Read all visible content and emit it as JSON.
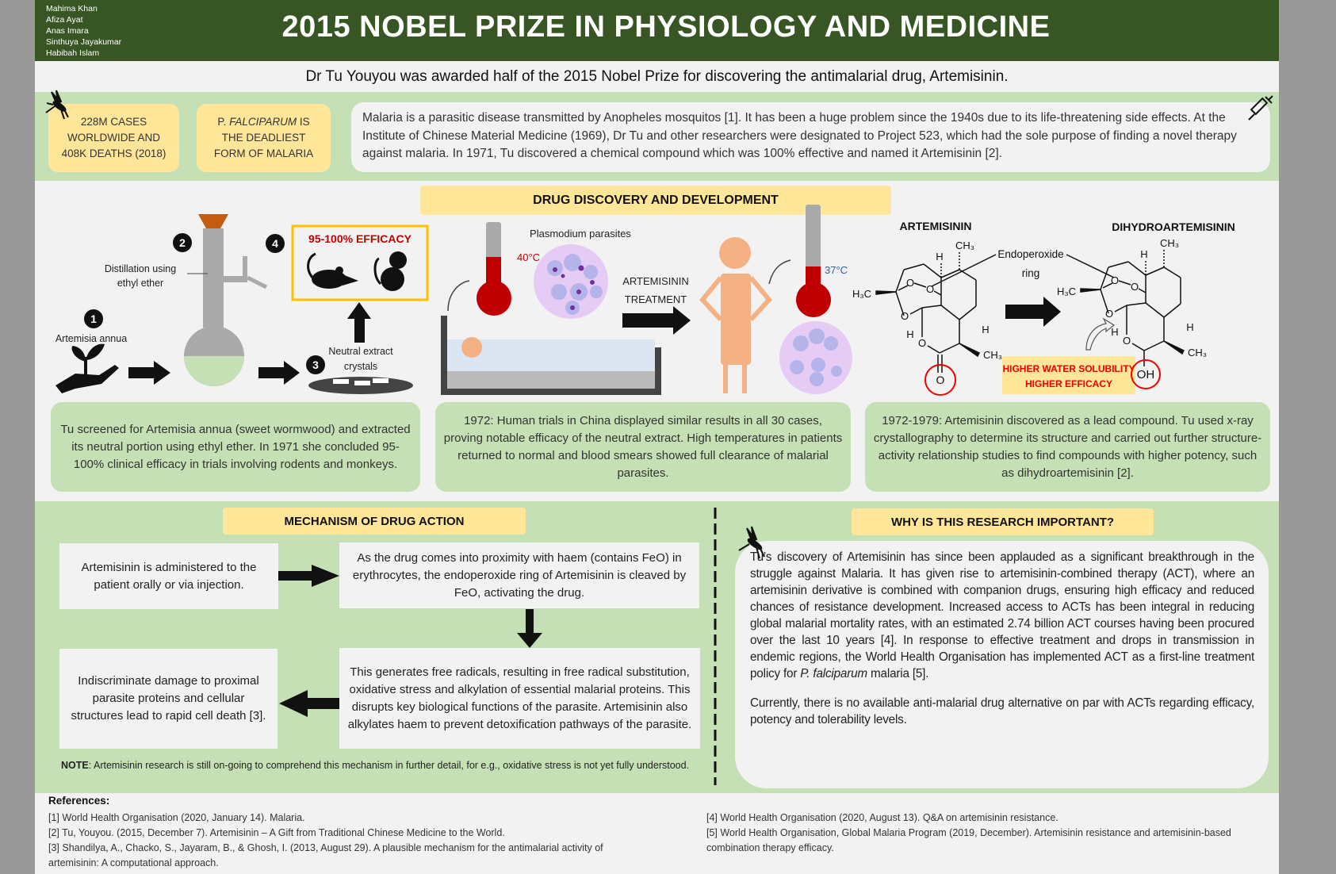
{
  "header": {
    "authors": [
      "Mahima Khan",
      "Afiza Ayat",
      "Anas Imara",
      "Sinthuya Jayakumar",
      "Habibah Islam"
    ],
    "title": "2015 NOBEL PRIZE IN PHYSIOLOGY AND MEDICINE",
    "subtitle": "Dr Tu Youyou was awarded half of the 2015 Nobel Prize for discovering the antimalarial drug, Artemisinin."
  },
  "intro": {
    "fact1": "228M CASES WORLDWIDE AND 408K DEATHS (2018)",
    "fact2_prefix": "P. ",
    "fact2_italic": "FALCIPARUM",
    "fact2_suffix": " IS THE DEADLIEST FORM OF MALARIA",
    "text": "Malaria is a parasitic disease transmitted by Anopheles mosquitos [1]. It has been a huge problem since the 1940s due to its life-threatening side effects. At the Institute of Chinese Material Medicine (1969), Dr Tu and other researchers were designated to Project 523, which had the sole purpose of finding a novel therapy against malaria. In 1971, Tu discovered a chemical compound which was 100% effective and named it Artemisinin [2]."
  },
  "discovery": {
    "title": "DRUG DISCOVERY AND DEVELOPMENT",
    "step_numbers": [
      "1",
      "2",
      "3",
      "4"
    ],
    "labels": {
      "plant": "Artemisia annua",
      "distill1": "Distillation using",
      "distill2": "ethyl ether",
      "neutral1": "Neutral extract",
      "neutral2": "crystals",
      "efficacy": "95-100% EFFICACY",
      "parasites": "Plasmodium parasites",
      "temp_high": "40°C",
      "temp_normal": "37°C",
      "treatment1": "ARTEMISININ",
      "treatment2": "TREATMENT",
      "artemisinin": "ARTEMISININ",
      "dihydro": "DIHYDROARTEMISININ",
      "endo1": "Endoperoxide",
      "endo2": "ring",
      "benefit1": "HIGHER WATER SOLUBILITY",
      "benefit2": "HIGHER EFFICACY"
    },
    "boxes": [
      "Tu screened for Artemisia annua (sweet wormwood) and extracted its neutral portion using ethyl ether. In 1971 she concluded 95-100% clinical efficacy in trials involving rodents and monkeys.",
      "1972: Human trials in China displayed similar results in all 30 cases, proving notable efficacy of the neutral extract. High temperatures in patients returned to normal and blood smears showed full clearance of malarial parasites.",
      "1972-1979: Artemisinin discovered as a lead compound. Tu used x-ray crystallography to determine its structure and carried out further structure-activity relationship studies to find compounds with higher potency, such as dihydroartemisinin [2]."
    ]
  },
  "mechanism": {
    "title": "MECHANISM OF DRUG ACTION",
    "steps": [
      "Artemisinin is administered to the patient orally or via injection.",
      "As the drug comes into proximity with haem (contains FeO) in erythrocytes, the endoperoxide ring of Artemisinin is cleaved by FeO, activating the drug.",
      "This generates free radicals, resulting in free radical substitution, oxidative stress and alkylation of essential malarial proteins. This disrupts key biological functions of the parasite. Artemisinin also alkylates haem to prevent detoxification pathways of the parasite.",
      "Indiscriminate damage to proximal parasite proteins and cellular structures lead to rapid cell death [3]."
    ],
    "note_label": "NOTE",
    "note": ": Artemisinin research is still on-going to comprehend this mechanism in further detail, for e.g., oxidative stress is not yet fully understood."
  },
  "importance": {
    "title": "WHY IS THIS RESEARCH IMPORTANT?",
    "para1": "Tu’s discovery of Artemisinin has since been applauded as a significant breakthrough in the struggle against Malaria. It has given rise to artemisinin-combined therapy (ACT), where an artemisinin derivative is combined with companion drugs, ensuring high efficacy and reduced chances of resistance development. Increased access to ACTs has been integral in reducing global malarial mortality rates, with an estimated 2.74 billion ACT courses having been procured over the last 10 years [4]. In response to effective treatment and drops in transmission in endemic regions, the World Health Organisation has implemented ACT as a first-line treatment policy for ",
    "para1_italic": "P. falciparum",
    "para1_end": " malaria [5].",
    "para2": "Currently, there is no available anti-malarial drug alternative on par with ACTs regarding efficacy, potency and tolerability levels."
  },
  "references": {
    "heading": "References:",
    "items": [
      "[1] World Health Organisation (2020, January 14). Malaria.",
      "[2] Tu, Youyou. (2015, December 7). Artemisinin – A Gift from Traditional Chinese Medicine to the World.",
      "[3] Shandilya, A., Chacko, S., Jayaram, B., & Ghosh, I. (2013, August 29). A plausible mechanism for the antimalarial activity of artemisinin: A computational approach.",
      "[4] World Health Organisation (2020, August 13). Q&A on artemisinin resistance.",
      "[5] World Health Organisation, Global Malaria Program (2019, December). Artemisinin resistance and artemisinin-based combination therapy efficacy."
    ]
  },
  "colors": {
    "header_green": "#375623",
    "light_green": "#c5e0b4",
    "yellow": "#ffe699",
    "red": "#c00000",
    "blue": "#2e5fa3",
    "orange": "#c55a11",
    "skin": "#f4b183",
    "lilac": "#e6ccf5"
  },
  "icons": [
    "mosquito-icon",
    "syringe-icon",
    "plant-hand-icon",
    "flask-icon",
    "rat-icon",
    "monkey-icon",
    "thermometer-icon",
    "bed-icon",
    "person-icon",
    "arrow-icon"
  ]
}
